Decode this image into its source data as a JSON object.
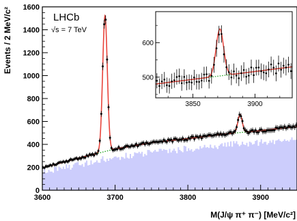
{
  "experiment_label": "LHCb",
  "energy_label": "√s = 7 TeV",
  "chart_data": [
    {
      "type": "histogram",
      "xlabel": "M(J/ψ π⁺ π⁻) [MeV/c²]",
      "ylabel": "Events / 2 MeV/c²",
      "xlim": [
        3600,
        3950
      ],
      "ylim": [
        0,
        1600
      ],
      "xticks": [
        3600,
        3700,
        3800,
        3900
      ],
      "yticks": [
        0,
        200,
        400,
        600,
        800,
        1000,
        1200,
        1400,
        1600
      ],
      "bin_width": 2,
      "series": [
        {
          "role": "data points with error bars",
          "color": "#000000",
          "peaks": [
            {
              "center": 3686.1,
              "height": 1520
            },
            {
              "center": 3871.7,
              "height": 660
            }
          ]
        },
        {
          "role": "total fit",
          "color": "#e8433a"
        },
        {
          "role": "background fit",
          "color": "#20a020",
          "style": "dotted"
        },
        {
          "role": "filled histogram",
          "color": "#cccdfc"
        }
      ],
      "background_points": [
        [
          3600,
          195
        ],
        [
          3650,
          280
        ],
        [
          3700,
          360
        ],
        [
          3750,
          415
        ],
        [
          3800,
          450
        ],
        [
          3850,
          490
        ],
        [
          3900,
          520
        ],
        [
          3950,
          555
        ]
      ]
    },
    {
      "type": "inset-histogram",
      "xlim": [
        3820,
        3930
      ],
      "ylim": [
        440,
        690
      ],
      "xticks": [
        3850,
        3900
      ],
      "yticks": [
        500,
        600
      ],
      "peak": {
        "center": 3871.7,
        "height": 640
      },
      "background_points": [
        [
          3820,
          480
        ],
        [
          3930,
          530
        ]
      ]
    }
  ]
}
